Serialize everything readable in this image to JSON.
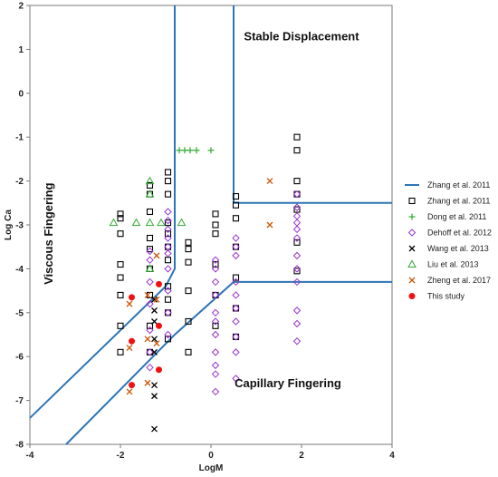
{
  "chart_data": {
    "type": "scatter",
    "title": "",
    "xlabel": "LogM",
    "ylabel": "Log Ca",
    "xlim": [
      -4,
      4
    ],
    "ylim": [
      -8,
      2
    ],
    "x_ticks": [
      -4,
      -2,
      0,
      2,
      4
    ],
    "y_ticks": [
      2,
      1,
      0,
      -1,
      -2,
      -3,
      -4,
      -5,
      -6,
      -7,
      -8
    ],
    "grid": false,
    "legend_position": "right",
    "region_labels": [
      {
        "text": "Stable Displacement",
        "x": 2.0,
        "y": 1.2,
        "rotate": false
      },
      {
        "text": "Viscous Fingering",
        "x": -3.5,
        "y": -3.2,
        "rotate": true
      },
      {
        "text": "Capillary Fingering",
        "x": 1.7,
        "y": -6.7,
        "rotate": false
      }
    ],
    "boundary_lines": [
      {
        "name": "Zhang et al. 2011",
        "color": "#2E75B6",
        "points": [
          [
            -4,
            -7.4
          ],
          [
            -1.0,
            -4.4
          ],
          [
            -0.8,
            -4.0
          ],
          [
            -0.8,
            2.0
          ]
        ]
      },
      {
        "name": "",
        "color": "#2E75B6",
        "points": [
          [
            -3.2,
            -8.0
          ],
          [
            -0.8,
            -5.5
          ],
          [
            0.5,
            -4.3
          ],
          [
            4.0,
            -4.3
          ]
        ]
      },
      {
        "name": "",
        "color": "#2E75B6",
        "points": [
          [
            0.5,
            2.0
          ],
          [
            0.5,
            -2.5
          ],
          [
            4.0,
            -2.5
          ]
        ]
      }
    ],
    "series": [
      {
        "name": "Zhang et al. 2011",
        "marker": "square-open",
        "color": "#000000",
        "points": [
          [
            -2.0,
            -2.75
          ],
          [
            -2.0,
            -2.85
          ],
          [
            -2.0,
            -3.2
          ],
          [
            -2.0,
            -3.9
          ],
          [
            -2.0,
            -4.2
          ],
          [
            -2.0,
            -4.6
          ],
          [
            -2.0,
            -5.3
          ],
          [
            -2.0,
            -5.9
          ],
          [
            -1.35,
            -2.1
          ],
          [
            -1.35,
            -2.3
          ],
          [
            -1.35,
            -2.7
          ],
          [
            -1.35,
            -3.3
          ],
          [
            -1.35,
            -3.55
          ],
          [
            -1.35,
            -4.0
          ],
          [
            -1.35,
            -4.6
          ],
          [
            -1.35,
            -5.3
          ],
          [
            -1.35,
            -5.9
          ],
          [
            -0.95,
            -1.8
          ],
          [
            -0.95,
            -2.0
          ],
          [
            -0.95,
            -2.3
          ],
          [
            -0.95,
            -2.95
          ],
          [
            -0.95,
            -3.2
          ],
          [
            -0.95,
            -3.5
          ],
          [
            -0.95,
            -3.8
          ],
          [
            -0.95,
            -4.4
          ],
          [
            -0.95,
            -4.7
          ],
          [
            -0.95,
            -5.0
          ],
          [
            -0.95,
            -5.6
          ],
          [
            -0.5,
            -3.4
          ],
          [
            -0.5,
            -3.55
          ],
          [
            -0.5,
            -3.85
          ],
          [
            -0.5,
            -4.5
          ],
          [
            -0.5,
            -5.2
          ],
          [
            -0.5,
            -5.9
          ],
          [
            0.1,
            -2.75
          ],
          [
            0.1,
            -3.0
          ],
          [
            0.1,
            -3.2
          ],
          [
            0.1,
            -3.9
          ],
          [
            0.1,
            -4.6
          ],
          [
            0.1,
            -5.3
          ],
          [
            0.55,
            -2.35
          ],
          [
            0.55,
            -2.55
          ],
          [
            0.55,
            -2.85
          ],
          [
            0.55,
            -3.5
          ],
          [
            0.55,
            -4.2
          ],
          [
            0.55,
            -4.9
          ],
          [
            0.55,
            -5.55
          ],
          [
            1.9,
            -1.0
          ],
          [
            1.9,
            -1.3
          ],
          [
            1.9,
            -2.0
          ],
          [
            1.9,
            -2.3
          ],
          [
            1.9,
            -2.65
          ],
          [
            1.9,
            -3.4
          ],
          [
            1.9,
            -4.05
          ]
        ]
      },
      {
        "name": "Dong et al. 2011",
        "marker": "plus",
        "color": "#33AA33",
        "points": [
          [
            -0.7,
            -1.3
          ],
          [
            -0.58,
            -1.3
          ],
          [
            -0.46,
            -1.3
          ],
          [
            -0.32,
            -1.3
          ],
          [
            0.0,
            -1.3
          ]
        ]
      },
      {
        "name": "Dehoff et al. 2012",
        "marker": "diamond-open",
        "color": "#9933CC",
        "points": [
          [
            -1.35,
            -3.6
          ],
          [
            -1.35,
            -3.8
          ],
          [
            -1.35,
            -4.3
          ],
          [
            -1.35,
            -4.8
          ],
          [
            -1.35,
            -5.4
          ],
          [
            -1.35,
            -5.9
          ],
          [
            -1.35,
            -6.25
          ],
          [
            -0.95,
            -2.7
          ],
          [
            -0.95,
            -2.9
          ],
          [
            -0.95,
            -3.1
          ],
          [
            -0.95,
            -3.3
          ],
          [
            -0.95,
            -3.5
          ],
          [
            -0.95,
            -3.65
          ],
          [
            -0.95,
            -4.0
          ],
          [
            -0.95,
            -4.5
          ],
          [
            -0.95,
            -5.0
          ],
          [
            -0.95,
            -5.5
          ],
          [
            0.1,
            -3.8
          ],
          [
            0.1,
            -4.0
          ],
          [
            0.1,
            -4.3
          ],
          [
            0.1,
            -4.6
          ],
          [
            0.1,
            -5.0
          ],
          [
            0.1,
            -5.2
          ],
          [
            0.1,
            -5.5
          ],
          [
            0.1,
            -5.9
          ],
          [
            0.1,
            -6.2
          ],
          [
            0.1,
            -6.4
          ],
          [
            0.1,
            -6.8
          ],
          [
            0.55,
            -3.3
          ],
          [
            0.55,
            -3.5
          ],
          [
            0.55,
            -3.7
          ],
          [
            0.55,
            -4.3
          ],
          [
            0.55,
            -4.6
          ],
          [
            0.55,
            -4.9
          ],
          [
            0.55,
            -5.2
          ],
          [
            0.55,
            -5.55
          ],
          [
            0.55,
            -5.9
          ],
          [
            0.55,
            -6.5
          ],
          [
            1.9,
            -2.3
          ],
          [
            1.9,
            -2.6
          ],
          [
            1.9,
            -2.8
          ],
          [
            1.9,
            -2.95
          ],
          [
            1.9,
            -3.1
          ],
          [
            1.9,
            -3.3
          ],
          [
            1.9,
            -3.7
          ],
          [
            1.9,
            -4.0
          ],
          [
            1.9,
            -4.3
          ],
          [
            1.9,
            -4.95
          ],
          [
            1.9,
            -5.25
          ],
          [
            1.9,
            -5.65
          ]
        ]
      },
      {
        "name": "Wang et al. 2013",
        "marker": "x",
        "color": "#000000",
        "points": [
          [
            -1.25,
            -4.7
          ],
          [
            -1.25,
            -4.95
          ],
          [
            -1.25,
            -5.2
          ],
          [
            -1.25,
            -5.6
          ],
          [
            -1.25,
            -5.9
          ],
          [
            -1.25,
            -6.65
          ],
          [
            -1.25,
            -6.9
          ],
          [
            -1.25,
            -7.65
          ]
        ]
      },
      {
        "name": "Liu et al. 2013",
        "marker": "triangle-open",
        "color": "#33AA33",
        "points": [
          [
            -2.15,
            -2.95
          ],
          [
            -1.65,
            -2.95
          ],
          [
            -1.35,
            -2.0
          ],
          [
            -1.35,
            -2.3
          ],
          [
            -1.35,
            -2.95
          ],
          [
            -1.35,
            -4.0
          ],
          [
            -1.1,
            -2.95
          ],
          [
            -0.65,
            -2.95
          ]
        ]
      },
      {
        "name": "Zheng et al. 2017",
        "marker": "x",
        "color": "#CC5500",
        "points": [
          [
            -1.8,
            -4.8
          ],
          [
            -1.8,
            -5.8
          ],
          [
            -1.8,
            -6.8
          ],
          [
            -1.4,
            -4.6
          ],
          [
            -1.4,
            -5.6
          ],
          [
            -1.4,
            -6.6
          ],
          [
            -1.2,
            -3.7
          ],
          [
            -1.2,
            -4.7
          ],
          [
            -1.2,
            -5.7
          ],
          [
            1.3,
            -2.0
          ],
          [
            1.3,
            -3.0
          ]
        ]
      },
      {
        "name": "This study",
        "marker": "circle-filled",
        "color": "#EE1111",
        "points": [
          [
            -1.75,
            -4.65
          ],
          [
            -1.75,
            -5.65
          ],
          [
            -1.75,
            -6.65
          ],
          [
            -1.15,
            -4.35
          ],
          [
            -1.15,
            -5.3
          ],
          [
            -1.15,
            -6.3
          ]
        ]
      }
    ]
  }
}
